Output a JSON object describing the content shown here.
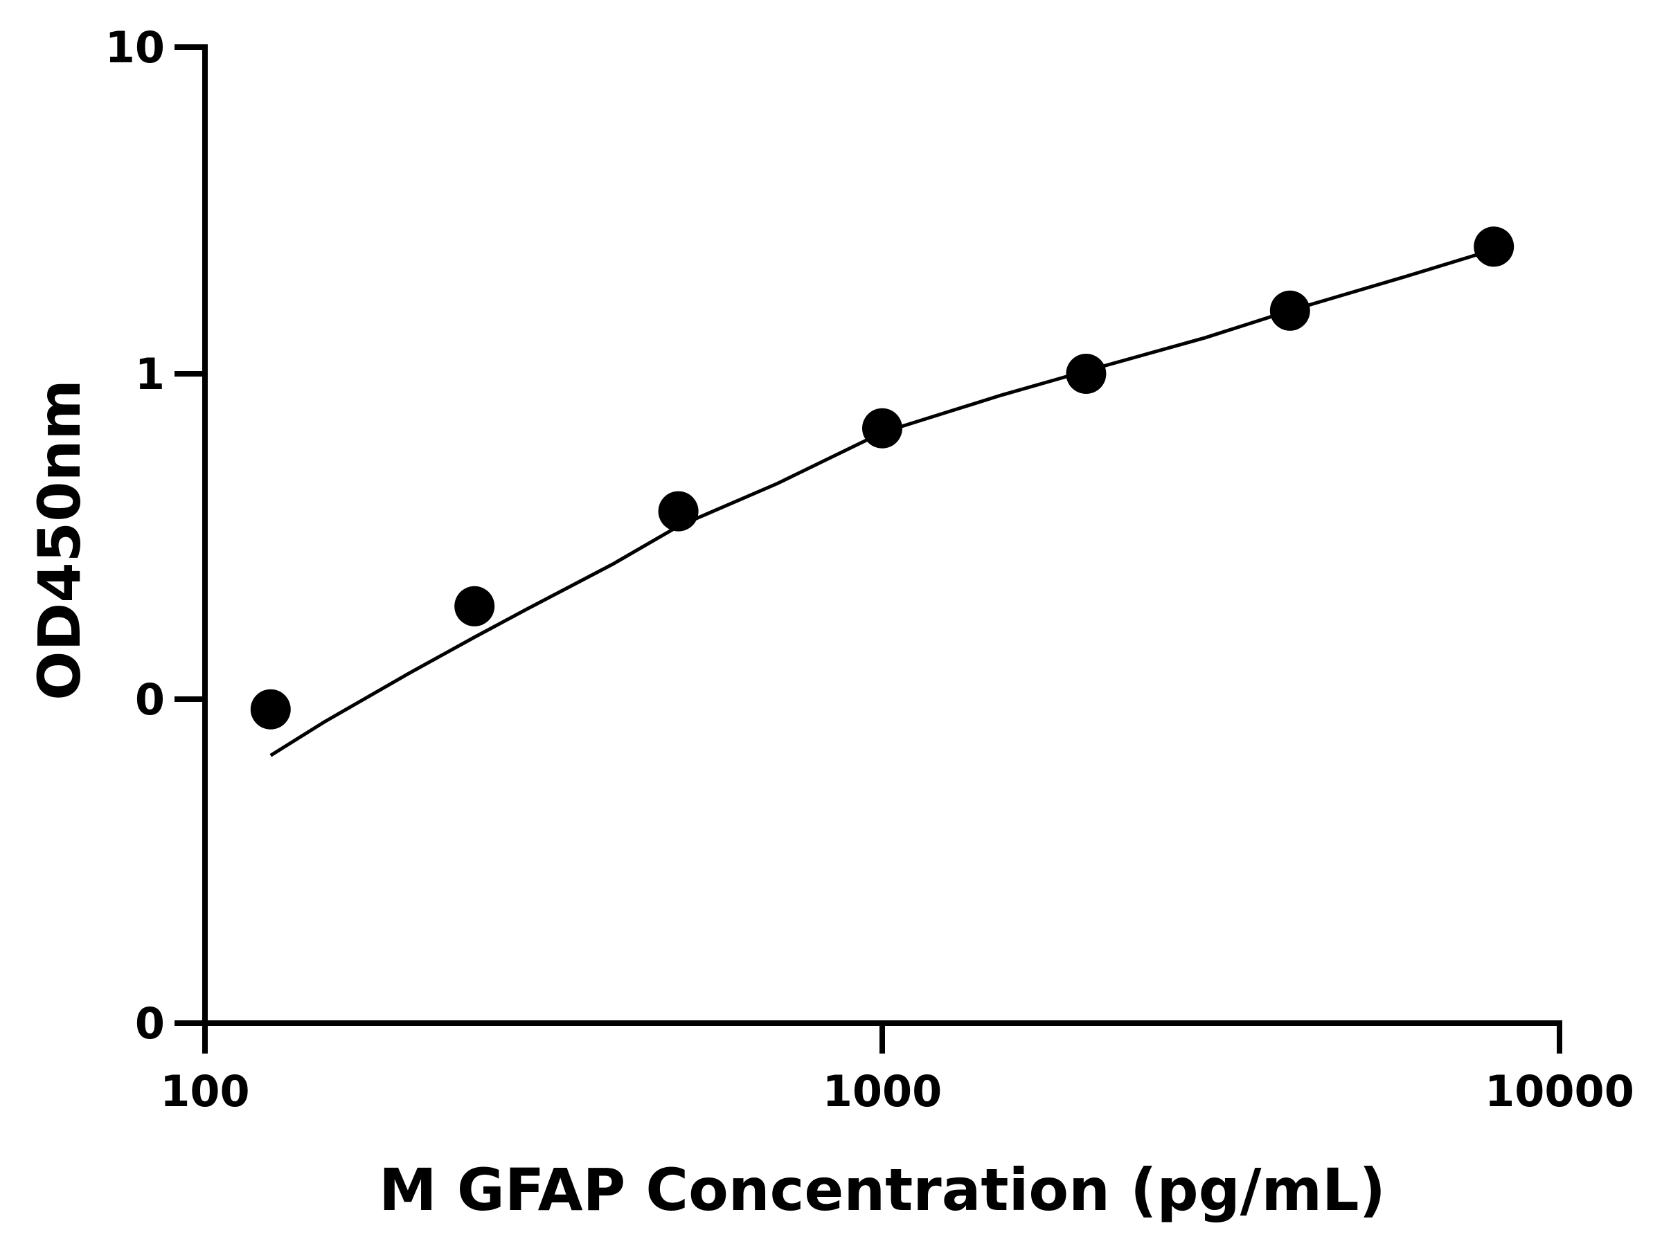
{
  "chart_data": {
    "type": "scatter",
    "title": "",
    "xlabel": "M GFAP Concentration (pg/mL)",
    "ylabel": "OD450nm",
    "x_scale": "log",
    "y_scale": "log",
    "xlim": [
      100,
      10000
    ],
    "x_ticks": [
      {
        "value": 100,
        "label": "100"
      },
      {
        "value": 1000,
        "label": "1000"
      },
      {
        "value": 10000,
        "label": "10000"
      }
    ],
    "y_ticks": [
      {
        "value": 10,
        "label": "10"
      },
      {
        "value": 1,
        "label": "1"
      },
      {
        "value": 0.1,
        "label": "0"
      },
      {
        "value": 0.01,
        "label": "0"
      }
    ],
    "ylim": [
      0.01,
      10
    ],
    "grid": false,
    "series": [
      {
        "kind": "points",
        "x": [
          125,
          250,
          500,
          1000,
          2000,
          4000,
          8000
        ],
        "y": [
          0.093,
          0.193,
          0.378,
          0.68,
          1.0,
          1.56,
          2.45
        ]
      },
      {
        "kind": "fit-curve",
        "x": [
          125,
          150,
          200,
          250,
          300,
          400,
          500,
          700,
          1000,
          1500,
          2000,
          3000,
          4000,
          6000,
          8000
        ],
        "y": [
          0.067,
          0.085,
          0.12,
          0.155,
          0.19,
          0.26,
          0.34,
          0.46,
          0.66,
          0.86,
          1.02,
          1.29,
          1.56,
          2.0,
          2.4
        ]
      }
    ]
  }
}
